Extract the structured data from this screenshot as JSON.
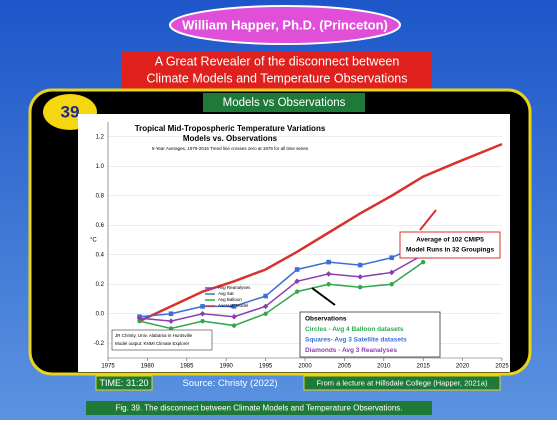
{
  "header": {
    "title": "William Happer, Ph.D. (Princeton)"
  },
  "banner": {
    "lines": [
      "A Great Revealer of the disconnect between",
      "Climate Models and Temperature Observations"
    ]
  },
  "slide_number": "39",
  "subtitle": "Models vs Observations",
  "chart_data": {
    "type": "line",
    "title": "Tropical Mid-Tropospheric Temperature Variations",
    "subtitle": "Models vs. Observations",
    "note": "5-Year Averages, 1979-2016 Trend line crosses zero at 1979 for all time series",
    "ylabel": "°C",
    "xlim": [
      1975,
      2025
    ],
    "xticks": [
      1975,
      1980,
      1985,
      1990,
      1995,
      2000,
      2005,
      2010,
      2015,
      2020,
      2025
    ],
    "ylim": [
      -0.3,
      1.3
    ],
    "yticks": [
      {
        "value": -0.2,
        "label": "-0.2"
      },
      {
        "value": 0,
        "label": "0.0"
      },
      {
        "value": 0.2,
        "label": "0.2"
      },
      {
        "value": 0.4,
        "label": "0.4"
      },
      {
        "value": 0.6,
        "label": "0.6"
      },
      {
        "value": 0.8,
        "label": "0.8"
      },
      {
        "value": 1,
        "label": "1.0"
      },
      {
        "value": 1.2,
        "label": "1.2"
      }
    ],
    "grid": true,
    "series": [
      {
        "name": "Average Model",
        "color": "#d9312b",
        "marker": "none",
        "x": [
          1979,
          1983,
          1987,
          1991,
          1995,
          1999,
          2003,
          2007,
          2011,
          2015,
          2019,
          2025
        ],
        "values": [
          -0.05,
          0.05,
          0.15,
          0.22,
          0.3,
          0.42,
          0.55,
          0.68,
          0.8,
          0.93,
          1.02,
          1.15
        ]
      },
      {
        "name": "Avg Balloon",
        "color": "#2fa84f",
        "marker": "circle",
        "x": [
          1979,
          1983,
          1987,
          1991,
          1995,
          1999,
          2003,
          2007,
          2011,
          2015
        ],
        "values": [
          -0.05,
          -0.1,
          -0.05,
          -0.08,
          0,
          0.15,
          0.2,
          0.18,
          0.2,
          0.35
        ]
      },
      {
        "name": "Avg Sat",
        "color": "#3b6fd6",
        "marker": "square",
        "x": [
          1979,
          1983,
          1987,
          1991,
          1995,
          1999,
          2003,
          2007,
          2011,
          2015
        ],
        "values": [
          -0.02,
          0,
          0.05,
          0.05,
          0.12,
          0.3,
          0.35,
          0.33,
          0.38,
          0.48
        ]
      },
      {
        "name": "Avg Reanalyses",
        "color": "#8a3fb0",
        "marker": "diamond",
        "x": [
          1979,
          1983,
          1987,
          1991,
          1995,
          1999,
          2003,
          2007,
          2011,
          2015
        ],
        "values": [
          -0.03,
          -0.05,
          0,
          -0.02,
          0.05,
          0.22,
          0.27,
          0.25,
          0.28,
          0.4
        ]
      }
    ],
    "model_box": [
      "Average of 102 CMIP5",
      "Model Runs in 32 Groupings"
    ],
    "obs_box": [
      "Observations",
      "Circles - Avg 4 Balloon datasets",
      "Squares- Avg 3 Satellite datasets",
      "Diamonds - Avg 3 Reanalyses"
    ],
    "credit": [
      "JR Christy, Univ. Alabama in Huntsville",
      "Model output: KNMI Climate Explorer"
    ]
  },
  "footer": {
    "time": "TIME: 31:20",
    "source": "Source: Christy (2022)",
    "lecture": "From a lecture at Hillsdale College (Happer, 2021a)"
  },
  "caption": "Fig. 39. The disconnect between Climate Models and Temperature Observations."
}
